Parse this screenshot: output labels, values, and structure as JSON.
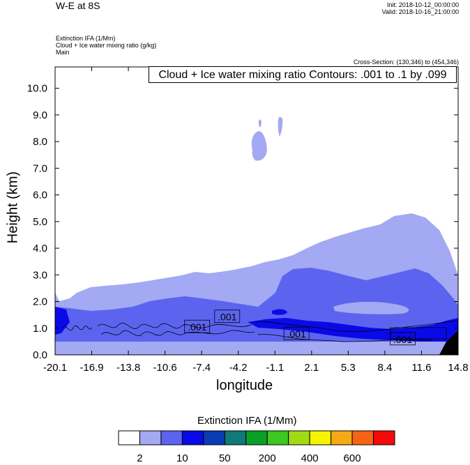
{
  "header": {
    "title": "W-E at 8S",
    "init": "Init: 2018-10-12_00:00:00",
    "valid": "Valid: 2018-10-16_21:00:00",
    "field1": "Extinction IFA   (1/Mm)",
    "field2": "Cloud + Ice water mixing ratio   (g/kg)",
    "field3": "Main",
    "cross_section": "Cross-Section: (130,346) to (454,346)",
    "contour_info": "Cloud + Ice water mixing ratio Contours: .001 to .1 by .099"
  },
  "chart_data": {
    "type": "heatmap",
    "title": "W-E at 8S",
    "xlabel": "longitude",
    "ylabel": "Height (km)",
    "xlim": [
      -20.1,
      14.8
    ],
    "ylim": [
      0.0,
      10.8
    ],
    "xticks": [
      "-20.1",
      "-16.9",
      "-13.8",
      "-10.6",
      "-7.4",
      "-4.2",
      "-1.1",
      "2.1",
      "5.3",
      "8.4",
      "11.6",
      "14.8"
    ],
    "yticks": [
      "0.0",
      "1.0",
      "2.0",
      "3.0",
      "4.0",
      "5.0",
      "6.0",
      "7.0",
      "8.0",
      "9.0",
      "10.0"
    ],
    "colorbar": {
      "title": "Extinction IFA  (1/Mm)",
      "labels": [
        "2",
        "10",
        "50",
        "200",
        "400",
        "600"
      ],
      "colors": [
        "#ffffff",
        "#a3a9f2",
        "#5c64ef",
        "#0a0ae8",
        "#0a3cb4",
        "#0f7a78",
        "#0aa028",
        "#3cc81e",
        "#a0dc14",
        "#f5f500",
        "#f5aa14",
        "#f56414",
        "#f50a0a"
      ]
    },
    "contour_labels": [
      ".001",
      ".001",
      ".001",
      ".001"
    ],
    "colors": {
      "light": "#a3a9f2",
      "medium": "#5c64ef",
      "dark": "#0a0ae8",
      "black": "#000000"
    }
  }
}
